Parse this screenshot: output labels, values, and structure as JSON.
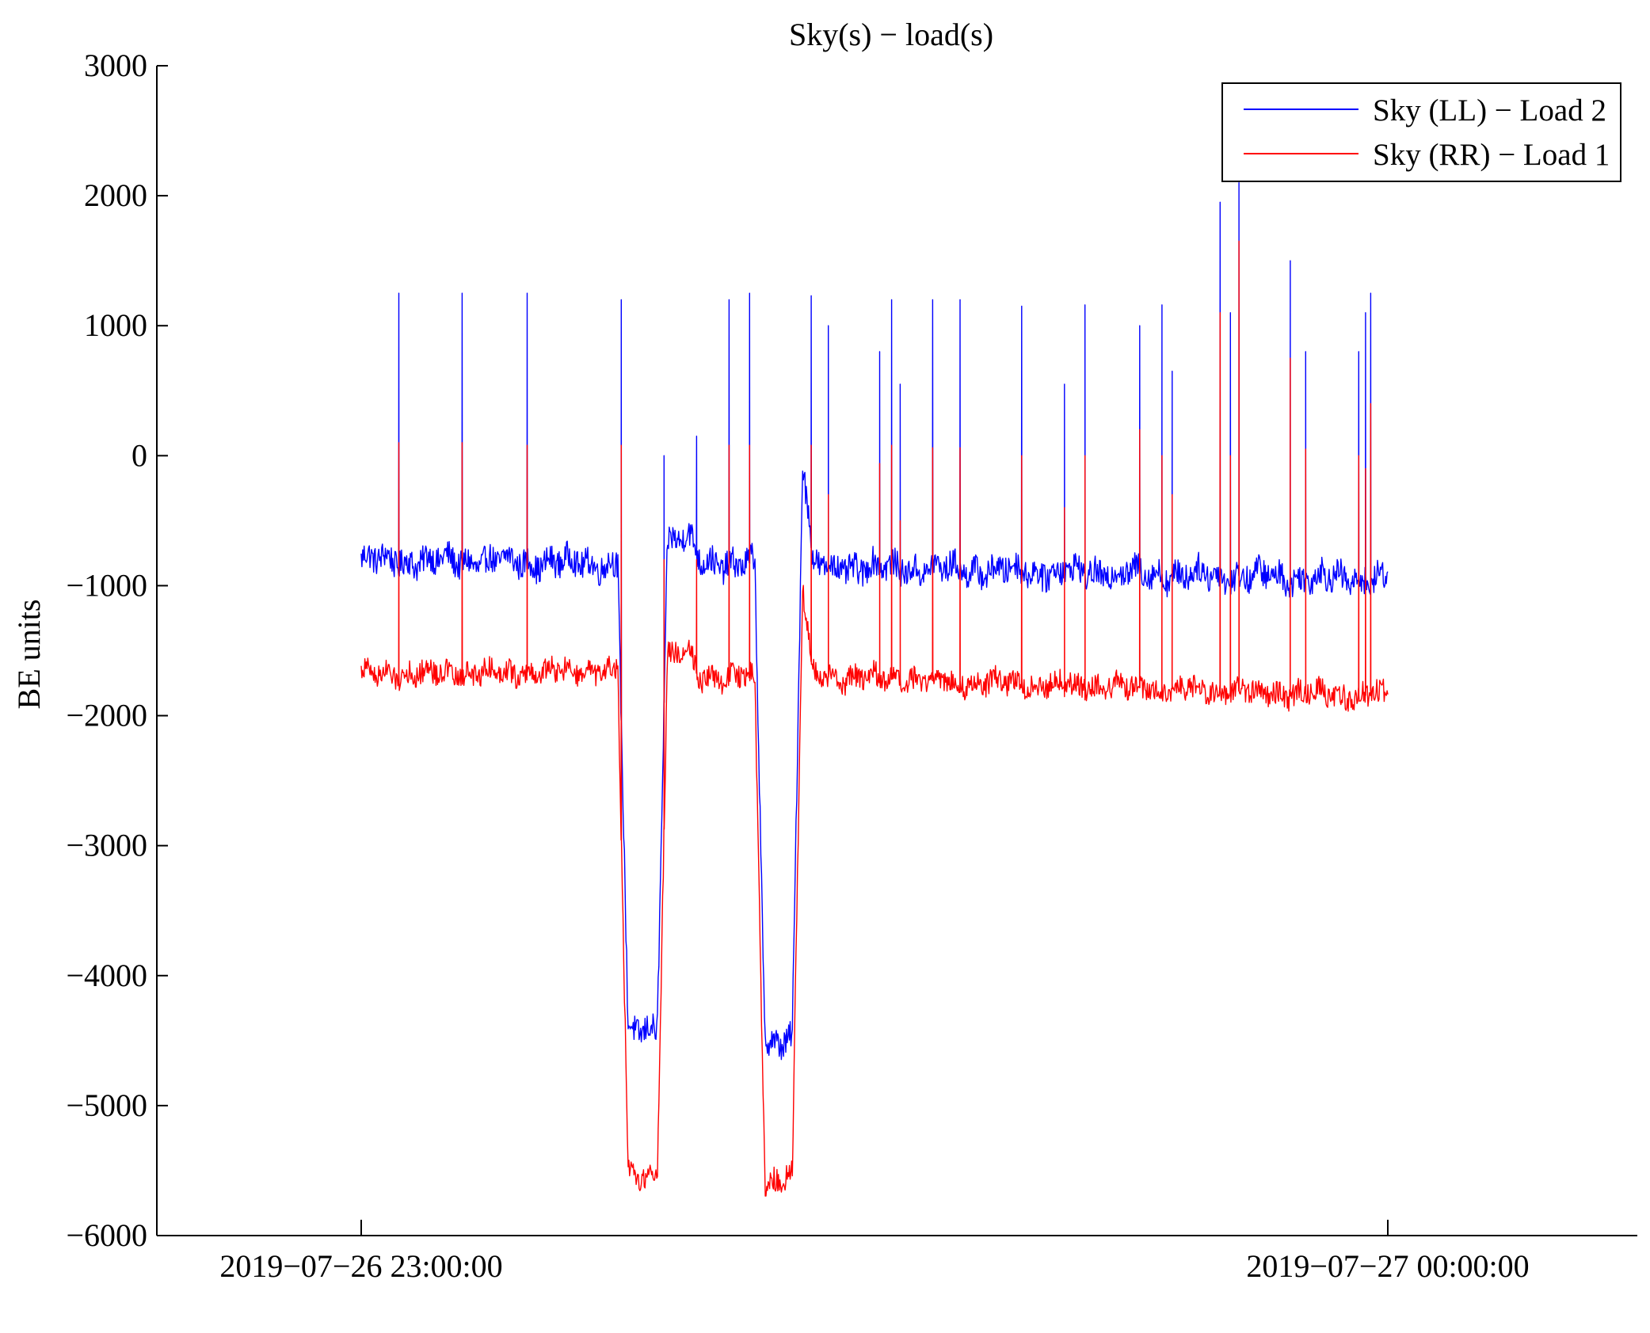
{
  "chart_data": {
    "type": "line",
    "title": "Sky(s) − load(s)",
    "xlabel": "",
    "ylabel": "BE units",
    "ylim": [
      -6000,
      3000
    ],
    "y_ticks": [
      "3000",
      "2000",
      "1000",
      "0",
      "−1000",
      "−2000",
      "−3000",
      "−4000",
      "−5000",
      "−6000"
    ],
    "x_axis": {
      "type": "time",
      "range": [
        "2019-07-26 22:48:00",
        "2019-07-27 00:14:00"
      ],
      "ticks": [
        {
          "label": "2019−07−26 23:00:00",
          "time_min": 0
        },
        {
          "label": "2019−07−27 00:00:00",
          "time_min": 60
        }
      ]
    },
    "x_units": "minutes since 2019-07-26 23:00:00",
    "legend": {
      "location": "top-right",
      "frame": true
    },
    "grid": false,
    "series": [
      {
        "name": "Sky (LL) − Load 2",
        "color": "#0000ff",
        "baseline": [
          [
            0,
            -800
          ],
          [
            15,
            -830
          ],
          [
            15.6,
            -4450
          ],
          [
            17.3,
            -4400
          ],
          [
            17.9,
            -650
          ],
          [
            19.1,
            -620
          ],
          [
            19.8,
            -820
          ],
          [
            23.0,
            -830
          ],
          [
            23.6,
            -4550
          ],
          [
            25.2,
            -4450
          ],
          [
            25.8,
            0
          ],
          [
            26.4,
            -850
          ],
          [
            60,
            -950
          ]
        ],
        "noise_amplitude": 110,
        "spikes": [
          [
            2.2,
            1250
          ],
          [
            5.9,
            1250
          ],
          [
            9.7,
            1250
          ],
          [
            15.2,
            1200
          ],
          [
            17.7,
            0
          ],
          [
            19.6,
            150
          ],
          [
            21.5,
            1200
          ],
          [
            22.7,
            1250
          ],
          [
            26.3,
            1230
          ],
          [
            27.3,
            1000
          ],
          [
            30.3,
            800
          ],
          [
            31.0,
            1200
          ],
          [
            31.5,
            550
          ],
          [
            33.4,
            1200
          ],
          [
            35.0,
            1200
          ],
          [
            38.6,
            1150
          ],
          [
            41.1,
            550
          ],
          [
            42.3,
            1160
          ],
          [
            45.5,
            1000
          ],
          [
            46.8,
            1160
          ],
          [
            47.4,
            650
          ],
          [
            50.2,
            1950
          ],
          [
            50.8,
            1100
          ],
          [
            51.3,
            2100
          ],
          [
            54.3,
            1500
          ],
          [
            55.2,
            800
          ],
          [
            58.3,
            800
          ],
          [
            58.7,
            1100
          ],
          [
            59.0,
            1250
          ]
        ]
      },
      {
        "name": "Sky (RR) − Load 1",
        "color": "#ff0000",
        "baseline": [
          [
            0,
            -1680
          ],
          [
            15,
            -1660
          ],
          [
            15.6,
            -5550
          ],
          [
            17.3,
            -5520
          ],
          [
            17.9,
            -1550
          ],
          [
            19.1,
            -1500
          ],
          [
            19.8,
            -1700
          ],
          [
            23.0,
            -1700
          ],
          [
            23.6,
            -5600
          ],
          [
            25.2,
            -5500
          ],
          [
            25.8,
            -1000
          ],
          [
            26.4,
            -1700
          ],
          [
            60,
            -1850
          ]
        ],
        "noise_amplitude": 90,
        "spikes": [
          [
            2.2,
            100
          ],
          [
            5.9,
            100
          ],
          [
            9.7,
            80
          ],
          [
            15.2,
            80
          ],
          [
            17.7,
            -800
          ],
          [
            19.6,
            -800
          ],
          [
            21.5,
            80
          ],
          [
            22.7,
            80
          ],
          [
            26.3,
            80
          ],
          [
            27.3,
            -300
          ],
          [
            30.3,
            -60
          ],
          [
            31.0,
            80
          ],
          [
            31.5,
            -500
          ],
          [
            33.4,
            60
          ],
          [
            35.0,
            60
          ],
          [
            38.6,
            0
          ],
          [
            41.1,
            -400
          ],
          [
            42.3,
            0
          ],
          [
            45.5,
            200
          ],
          [
            46.8,
            0
          ],
          [
            47.4,
            -300
          ],
          [
            50.2,
            1100
          ],
          [
            50.8,
            0
          ],
          [
            51.3,
            1650
          ],
          [
            54.3,
            750
          ],
          [
            55.2,
            50
          ],
          [
            58.3,
            0
          ],
          [
            58.7,
            -100
          ],
          [
            59.0,
            400
          ]
        ]
      }
    ]
  }
}
